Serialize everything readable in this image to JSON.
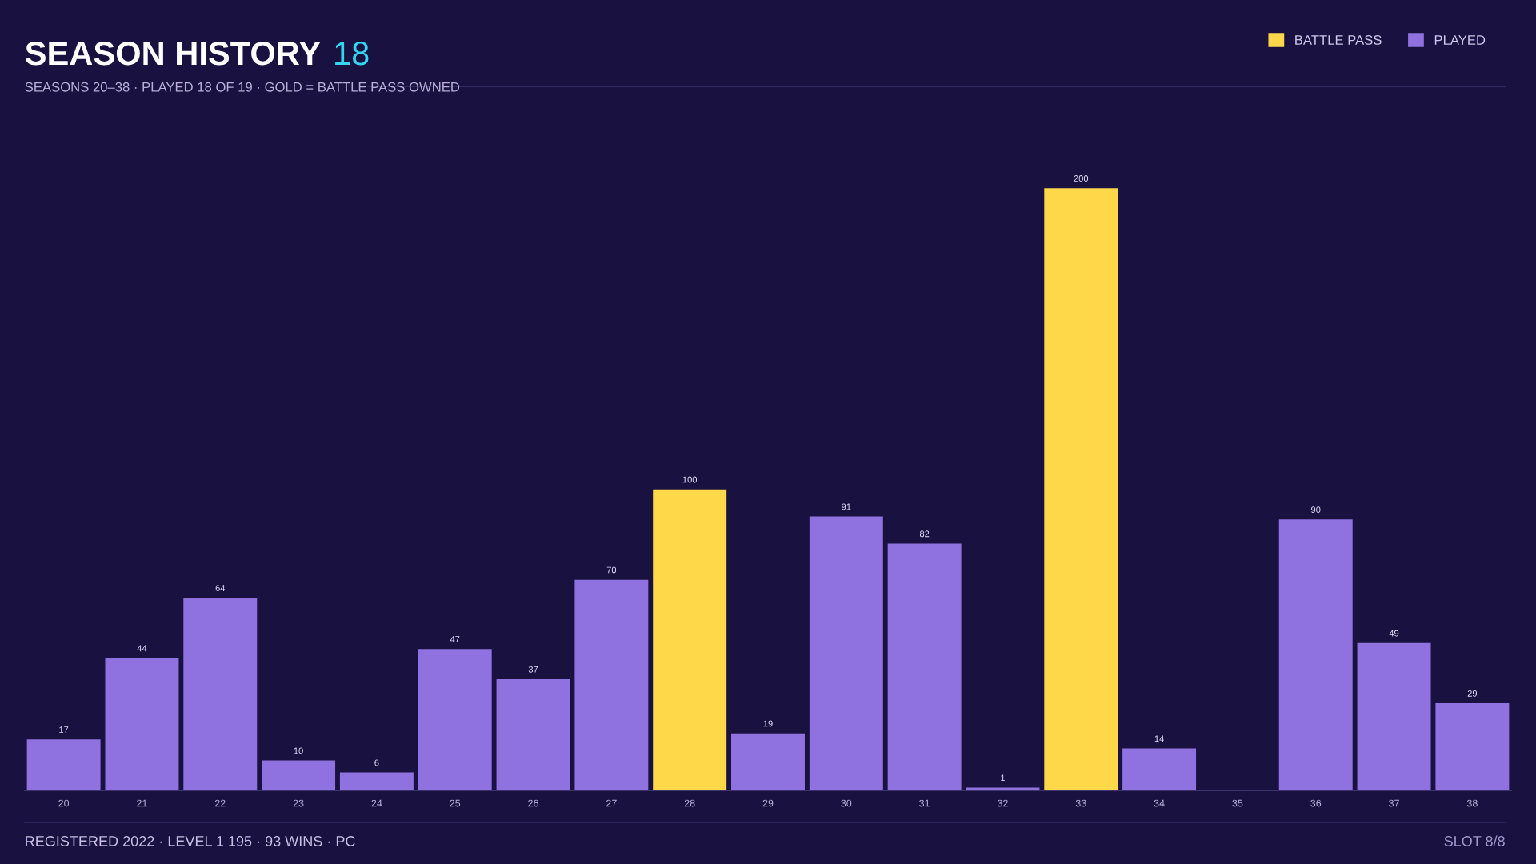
{
  "chart_data": {
    "type": "bar",
    "title": "SEASON HISTORY",
    "subtitle": "SEASONS 20–38 · PLAYED 18 OF 19 · GOLD = BATTLE PASS OWNED",
    "annotations": [
      "18",
      "REGISTERED 2022 · LEVEL 1 195 · 93 WINS · PC",
      "SLOT 8/8"
    ],
    "categories": [
      "20",
      "21",
      "22",
      "23",
      "24",
      "25",
      "26",
      "27",
      "28",
      "29",
      "30",
      "31",
      "32",
      "33",
      "34",
      "35",
      "36",
      "37",
      "38"
    ],
    "series": [
      {
        "name": "BATTLE PASS",
        "color": "#ffd84a",
        "values": [
          null,
          null,
          null,
          null,
          null,
          null,
          null,
          null,
          100,
          null,
          null,
          null,
          null,
          200,
          null,
          null,
          null,
          null,
          null
        ]
      },
      {
        "name": "PLAYED",
        "color": "#8f72e0",
        "values": [
          17,
          44,
          64,
          10,
          6,
          47,
          37,
          70,
          null,
          19,
          91,
          82,
          1,
          null,
          14,
          null,
          90,
          49,
          29
        ]
      }
    ],
    "data_labels": true,
    "legend": "top right",
    "grid": false
  }
}
